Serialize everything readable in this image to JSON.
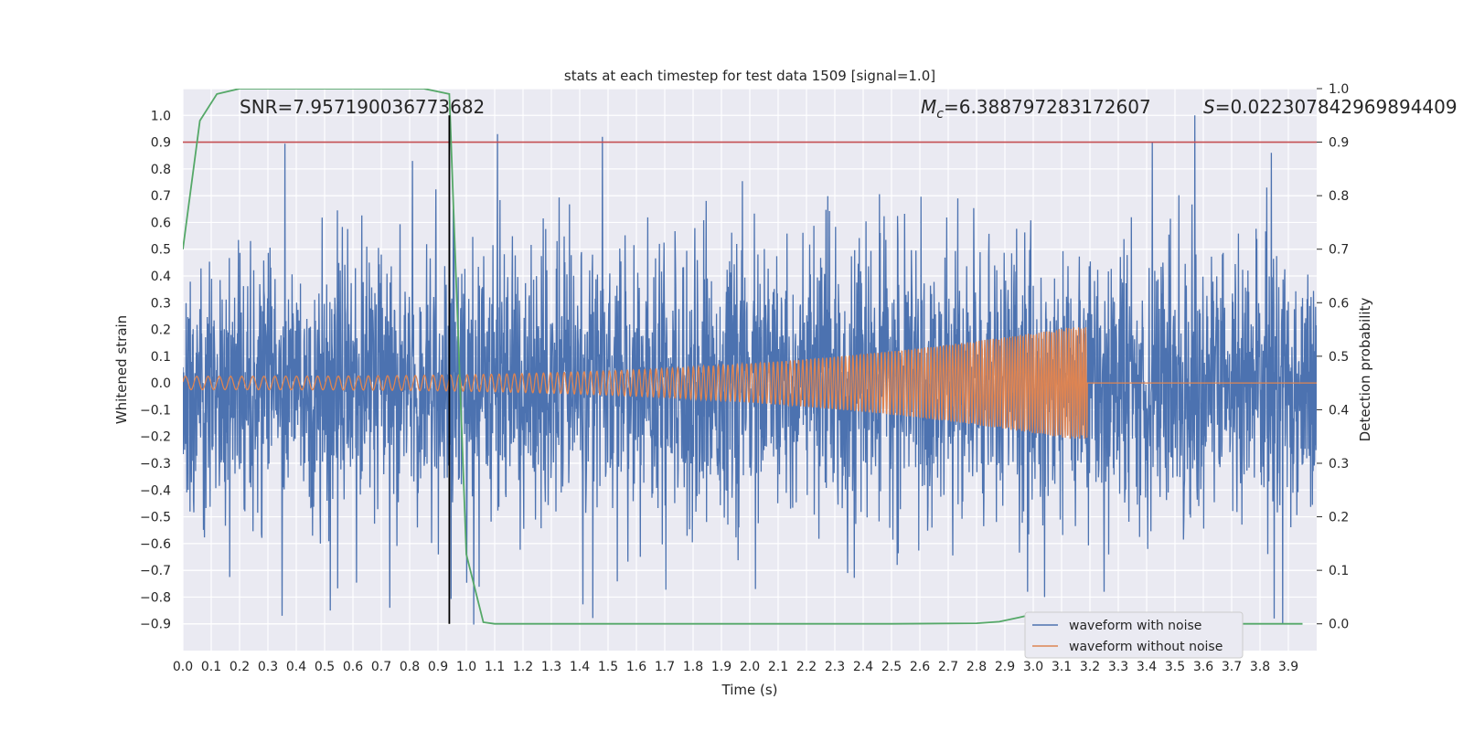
{
  "chart_data": {
    "type": "line",
    "title": "stats at each timestep for test data 1509 [signal=1.0]",
    "xlabel": "Time (s)",
    "ylabel_left": "Whitened strain",
    "ylabel_right": "Detection probability",
    "xlim": [
      0.0,
      4.0
    ],
    "ylim_left": [
      -1.0,
      1.1
    ],
    "ylim_right": [
      -0.05,
      1.0
    ],
    "x_ticks": [
      "0.0",
      "0.1",
      "0.2",
      "0.3",
      "0.4",
      "0.5",
      "0.6",
      "0.7",
      "0.8",
      "0.9",
      "1.0",
      "1.1",
      "1.2",
      "1.3",
      "1.4",
      "1.5",
      "1.6",
      "1.7",
      "1.8",
      "1.9",
      "2.0",
      "2.1",
      "2.2",
      "2.3",
      "2.4",
      "2.5",
      "2.6",
      "2.7",
      "2.8",
      "2.9",
      "3.0",
      "3.1",
      "3.2",
      "3.3",
      "3.4",
      "3.5",
      "3.6",
      "3.7",
      "3.8",
      "3.9"
    ],
    "y_left_ticks": [
      "−0.9",
      "−0.8",
      "−0.7",
      "−0.6",
      "−0.5",
      "−0.4",
      "−0.3",
      "−0.2",
      "−0.1",
      "0.0",
      "0.1",
      "0.2",
      "0.3",
      "0.4",
      "0.5",
      "0.6",
      "0.7",
      "0.8",
      "0.9",
      "1.0"
    ],
    "y_right_ticks": [
      "0.0",
      "0.1",
      "0.2",
      "0.3",
      "0.4",
      "0.5",
      "0.6",
      "0.7",
      "0.8",
      "0.9",
      "1.0"
    ],
    "grid": true,
    "legend_position": "bottom-right",
    "annotations": {
      "snr": "SNR=7.957190036773682",
      "mc_symbol": "M",
      "mc_sub": "c",
      "mc_value": "=6.388797283172607",
      "s_symbol": "S",
      "s_value": "=0.022307842969894409"
    },
    "series": [
      {
        "name": "waveform with noise",
        "axis": "left",
        "color": "#4c72b0",
        "description_type": "noise",
        "noise_std": 0.25,
        "peaks": [
          {
            "x": 0.94,
            "y": 0.99
          },
          {
            "x": 1.11,
            "y": 0.93
          },
          {
            "x": 1.48,
            "y": 0.92
          },
          {
            "x": 0.81,
            "y": 0.83
          },
          {
            "x": 3.42,
            "y": 0.9
          },
          {
            "x": 3.57,
            "y": 1.0
          },
          {
            "x": 3.84,
            "y": 0.86
          },
          {
            "x": 0.35,
            "y": -0.87
          },
          {
            "x": 0.52,
            "y": -0.85
          },
          {
            "x": 0.73,
            "y": -0.84
          },
          {
            "x": 2.02,
            "y": -0.77
          },
          {
            "x": 2.98,
            "y": -0.78
          },
          {
            "x": 3.04,
            "y": -0.8
          },
          {
            "x": 3.25,
            "y": -0.78
          },
          {
            "x": 3.85,
            "y": -0.88
          },
          {
            "x": 3.88,
            "y": -0.9
          }
        ]
      },
      {
        "name": "waveform without noise",
        "axis": "left",
        "color": "#dd8452",
        "chirp_start": 0.0,
        "chirp_end": 3.19,
        "amp_start": 0.025,
        "amp_end": 0.22,
        "freq_start_hz": 25,
        "freq_end_hz": 120
      },
      {
        "name": "detection probability",
        "axis": "right",
        "color": "#55a868",
        "x": [
          0.0,
          0.06,
          0.12,
          0.2,
          0.3,
          0.5,
          0.7,
          0.85,
          0.94,
          0.96,
          1.0,
          1.06,
          1.1,
          1.3,
          2.0,
          2.5,
          2.8,
          2.88,
          2.95,
          3.0,
          3.1,
          3.2,
          3.3,
          3.5,
          3.7,
          3.95
        ],
        "y": [
          0.7,
          0.94,
          0.99,
          1.0,
          1.0,
          1.0,
          1.0,
          1.0,
          0.99,
          0.7,
          0.13,
          0.003,
          0.0,
          0.0,
          0.0,
          0.0,
          0.001,
          0.004,
          0.012,
          0.018,
          0.02,
          0.015,
          0.01,
          0.005,
          0.0,
          0.0
        ]
      }
    ],
    "threshold_line": {
      "axis": "right",
      "y": 0.9,
      "color": "#c44e52"
    },
    "marker_line": {
      "x": 0.94,
      "color": "#000000",
      "y_from": -0.9,
      "y_to": 1.0
    }
  }
}
